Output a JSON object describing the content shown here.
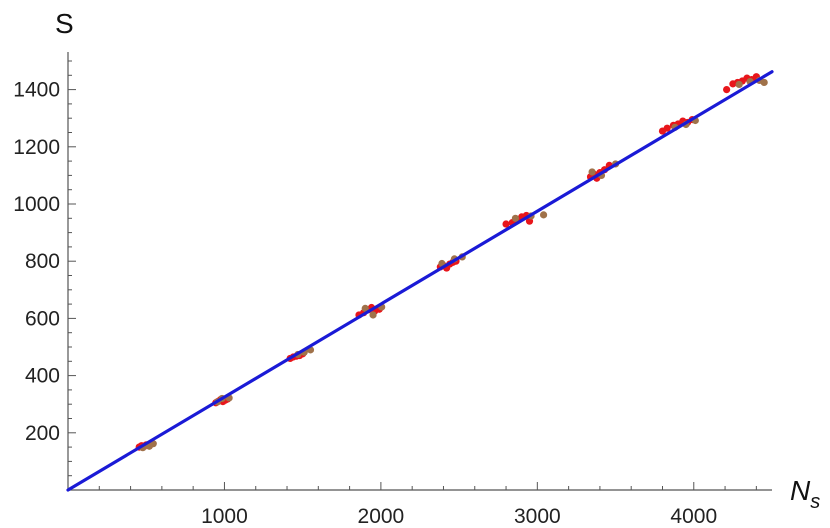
{
  "chart_data": {
    "type": "scatter",
    "title": "",
    "xlabel": "N",
    "xlabel_subscript": "s",
    "ylabel": "S",
    "xlim": [
      0,
      4500
    ],
    "ylim": [
      0,
      1500
    ],
    "x_ticks": [
      1000,
      2000,
      3000,
      4000
    ],
    "y_ticks": [
      200,
      400,
      600,
      800,
      1000,
      1200,
      1400
    ],
    "grid": false,
    "colors": {
      "red": "#e8161b",
      "brown": "#a0724a",
      "line": "#1a1ad6",
      "axis": "#555555"
    },
    "fit_line": {
      "slope": 0.325,
      "intercept": 0
    },
    "series": [
      {
        "color": "red",
        "points": [
          [
            455,
            150
          ],
          [
            470,
            155
          ],
          [
            485,
            152
          ],
          [
            500,
            158
          ],
          [
            515,
            156
          ],
          [
            530,
            160
          ],
          [
            945,
            305
          ],
          [
            960,
            310
          ],
          [
            975,
            316
          ],
          [
            990,
            309
          ],
          [
            1005,
            314
          ],
          [
            1020,
            318
          ],
          [
            1420,
            460
          ],
          [
            1440,
            465
          ],
          [
            1460,
            468
          ],
          [
            1480,
            470
          ],
          [
            1500,
            476
          ],
          [
            1860,
            612
          ],
          [
            1890,
            620
          ],
          [
            1920,
            630
          ],
          [
            1940,
            638
          ],
          [
            1960,
            625
          ],
          [
            1990,
            632
          ],
          [
            2380,
            780
          ],
          [
            2400,
            785
          ],
          [
            2420,
            776
          ],
          [
            2440,
            790
          ],
          [
            2460,
            796
          ],
          [
            2480,
            800
          ],
          [
            2800,
            930
          ],
          [
            2840,
            935
          ],
          [
            2870,
            945
          ],
          [
            2900,
            955
          ],
          [
            2930,
            960
          ],
          [
            2950,
            940
          ],
          [
            3340,
            1095
          ],
          [
            3360,
            1105
          ],
          [
            3380,
            1090
          ],
          [
            3400,
            1110
          ],
          [
            3430,
            1120
          ],
          [
            3460,
            1135
          ],
          [
            3800,
            1255
          ],
          [
            3830,
            1265
          ],
          [
            3870,
            1275
          ],
          [
            3900,
            1280
          ],
          [
            3930,
            1290
          ],
          [
            3960,
            1285
          ],
          [
            3990,
            1295
          ],
          [
            4210,
            1400
          ],
          [
            4250,
            1420
          ],
          [
            4280,
            1425
          ],
          [
            4310,
            1430
          ],
          [
            4340,
            1440
          ],
          [
            4370,
            1435
          ],
          [
            4400,
            1445
          ]
        ]
      },
      {
        "color": "brown",
        "points": [
          [
            478,
            148
          ],
          [
            520,
            153
          ],
          [
            545,
            162
          ],
          [
            955,
            308
          ],
          [
            985,
            320
          ],
          [
            1030,
            322
          ],
          [
            1470,
            474
          ],
          [
            1510,
            482
          ],
          [
            1550,
            490
          ],
          [
            1900,
            635
          ],
          [
            1950,
            612
          ],
          [
            2005,
            640
          ],
          [
            2390,
            792
          ],
          [
            2470,
            808
          ],
          [
            2520,
            815
          ],
          [
            2860,
            950
          ],
          [
            2960,
            958
          ],
          [
            3040,
            962
          ],
          [
            3350,
            1112
          ],
          [
            3410,
            1100
          ],
          [
            3500,
            1140
          ],
          [
            3880,
            1268
          ],
          [
            3950,
            1278
          ],
          [
            4010,
            1292
          ],
          [
            4290,
            1418
          ],
          [
            4360,
            1428
          ],
          [
            4420,
            1432
          ],
          [
            4450,
            1425
          ]
        ]
      }
    ]
  }
}
